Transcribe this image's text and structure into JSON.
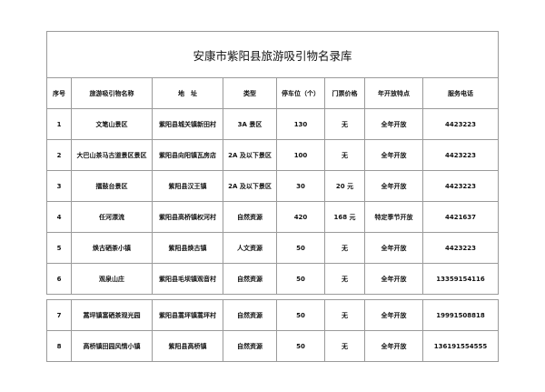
{
  "title": "安康市紫阳县旅游吸引物名录库",
  "headers": [
    "序号",
    "旅游吸引物名称",
    "地　址",
    "类型",
    "停车位（个）",
    "门票价格",
    "年开放特点",
    "服务电话"
  ],
  "rows": [
    [
      "1",
      "文笔山景区",
      "紫阳县城关镇新田村",
      "3A 景区",
      "130",
      "无",
      "全年开放",
      "4423223"
    ],
    [
      "2",
      "大巴山茶马古道景区景区",
      "紫阳县向阳镇瓦房店",
      "2A 及以下景区",
      "100",
      "无",
      "全年开放",
      "4423223"
    ],
    [
      "3",
      "擂鼓台景区",
      "紫阳县汉王镇",
      "2A 及以下景区",
      "30",
      "20 元",
      "全年开放",
      "4423223"
    ],
    [
      "4",
      "任河漂流",
      "紫阳县高桥镇权河村",
      "自然资源",
      "420",
      "168 元",
      "特定季节开放",
      "4421637"
    ],
    [
      "5",
      "焕古硒茶小镇",
      "紫阳县焕古镇",
      "人文资源",
      "50",
      "无",
      "全年开放",
      "4423223"
    ],
    [
      "6",
      "观泉山庄",
      "紫阳县毛坝镇观音村",
      "自然资源",
      "50",
      "无",
      "全年开放",
      "13359154116"
    ],
    [
      "7",
      "蒿坪镇富硒茶观光园",
      "紫阳县蒿坪镇蒿坪村",
      "自然资源",
      "50",
      "无",
      "全年开放",
      "19991508818"
    ],
    [
      "8",
      "高桥镇田园风情小镇",
      "紫阳县高桥镇",
      "自然资源",
      "50",
      "无",
      "全年开放",
      "136191554555"
    ]
  ]
}
